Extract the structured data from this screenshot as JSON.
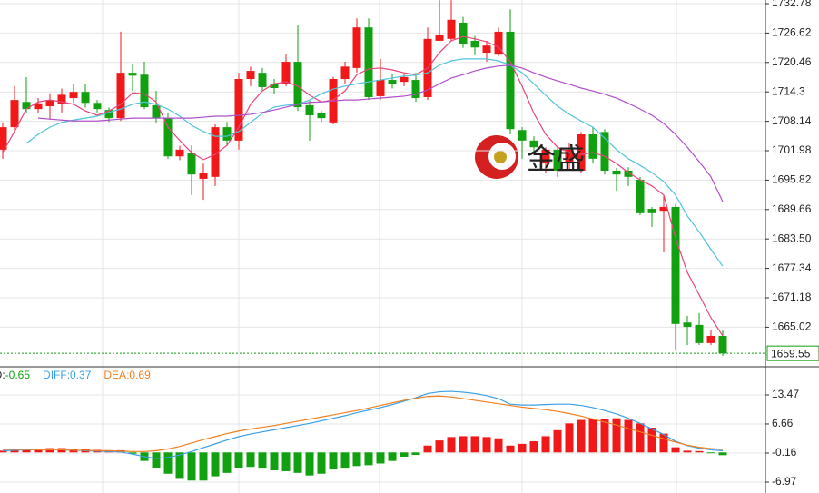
{
  "chart_data": [
    {
      "type": "candlestick",
      "open": [
        1702.2,
        1706.9,
        1712.2,
        1710.7,
        1711.3,
        1711.8,
        1713.0,
        1714.3,
        1712.0,
        1710.5,
        1708.8,
        1718.3,
        1717.9,
        1711.5,
        1708.8,
        1700.8,
        1701.6,
        1696.1,
        1696.5,
        1706.9,
        1704.1,
        1717.0,
        1718.3,
        1715.9,
        1716.0,
        1720.6,
        1711.5,
        1709.8,
        1707.9,
        1717.0,
        1719.3,
        1727.8,
        1713.4,
        1716.8,
        1716.4,
        1716.8,
        1713.2,
        1725.0,
        1725.4,
        1728.8,
        1725.0,
        1722.5,
        1722.1,
        1726.9,
        1706.3,
        1704.1,
        1699.3,
        1702.2,
        1699.3,
        1697.8,
        1705.4,
        1705.9,
        1697.8,
        1697.8,
        1695.9,
        1689.8,
        1689.4,
        1690.2,
        1666.0,
        1665.5,
        1661.7,
        1663.2
      ],
      "high": [
        1707.9,
        1715.5,
        1717.4,
        1713.0,
        1714.0,
        1715.0,
        1716.0,
        1716.0,
        1712.6,
        1711.0,
        1726.9,
        1720.2,
        1720.6,
        1714.5,
        1710.0,
        1703.0,
        1703.1,
        1699.3,
        1707.5,
        1708.0,
        1718.3,
        1719.6,
        1719.3,
        1717.0,
        1722.1,
        1728.2,
        1712.6,
        1710.3,
        1717.4,
        1720.6,
        1729.7,
        1729.7,
        1721.2,
        1718.0,
        1718.0,
        1718.3,
        1727.8,
        1733.5,
        1733.5,
        1730.0,
        1726.0,
        1725.0,
        1727.8,
        1731.6,
        1706.9,
        1705.0,
        1702.7,
        1703.0,
        1703.5,
        1705.9,
        1706.9,
        1706.5,
        1698.4,
        1698.5,
        1696.5,
        1690.2,
        1692.7,
        1690.8,
        1667.4,
        1668.0,
        1664.5,
        1664.5
      ],
      "low": [
        1700.3,
        1706.0,
        1709.8,
        1709.8,
        1708.5,
        1710.0,
        1712.0,
        1711.0,
        1710.0,
        1708.0,
        1708.2,
        1714.5,
        1710.7,
        1707.9,
        1700.3,
        1700.0,
        1692.7,
        1691.7,
        1694.6,
        1703.0,
        1702.2,
        1715.5,
        1714.5,
        1713.8,
        1715.5,
        1710.3,
        1704.1,
        1708.0,
        1707.5,
        1716.0,
        1718.3,
        1712.6,
        1712.6,
        1715.0,
        1715.5,
        1712.2,
        1712.6,
        1725.0,
        1725.0,
        1723.5,
        1722.0,
        1720.6,
        1721.8,
        1705.4,
        1700.3,
        1701.0,
        1697.4,
        1696.5,
        1697.8,
        1697.4,
        1699.3,
        1697.0,
        1693.6,
        1694.6,
        1688.5,
        1686.0,
        1680.7,
        1660.3,
        1661.3,
        1661.3,
        1661.3,
        1659.0
      ],
      "close": [
        1706.9,
        1712.6,
        1710.7,
        1711.9,
        1712.6,
        1713.7,
        1714.3,
        1712.0,
        1710.7,
        1708.8,
        1718.3,
        1717.7,
        1711.1,
        1708.8,
        1700.8,
        1702.2,
        1697.0,
        1697.4,
        1706.9,
        1704.1,
        1717.0,
        1718.7,
        1715.3,
        1715.1,
        1720.6,
        1711.1,
        1709.4,
        1708.8,
        1717.0,
        1719.6,
        1727.8,
        1713.2,
        1716.8,
        1716.0,
        1717.4,
        1713.0,
        1725.4,
        1726.3,
        1729.4,
        1724.4,
        1723.6,
        1724.0,
        1726.9,
        1706.5,
        1704.1,
        1702.7,
        1702.2,
        1697.8,
        1702.2,
        1705.4,
        1700.3,
        1697.8,
        1697.0,
        1696.5,
        1688.9,
        1688.9,
        1690.2,
        1665.7,
        1665.1,
        1661.7,
        1663.2,
        1659.55
      ],
      "up_color": "#f01818",
      "down_color": "#10a010",
      "lines": [
        {
          "color": "#e8457a",
          "values": [
            1701.6,
            1706.0,
            1710.7,
            1712.2,
            1712.6,
            1712.2,
            1711.7,
            1710.3,
            1709.4,
            1710.3,
            1711.7,
            1714.1,
            1713.9,
            1712.2,
            1706.9,
            1704.1,
            1701.6,
            1700.1,
            1701.2,
            1703.1,
            1706.9,
            1711.7,
            1714.5,
            1716.0,
            1716.4,
            1715.5,
            1713.6,
            1712.2,
            1712.6,
            1714.5,
            1717.9,
            1719.1,
            1719.3,
            1718.9,
            1718.3,
            1717.9,
            1719.3,
            1722.5,
            1725.0,
            1725.9,
            1725.4,
            1724.8,
            1723.7,
            1720.6,
            1715.5,
            1709.8,
            1705.4,
            1702.7,
            1701.6,
            1701.2,
            1701.6,
            1700.8,
            1699.3,
            1697.4,
            1695.9,
            1694.6,
            1692.7,
            1683.7,
            1676.5,
            1671.8,
            1667.0,
            1663.2
          ]
        },
        {
          "color": "#4fc3dc",
          "values": [
            null,
            null,
            1703.5,
            1705.4,
            1706.9,
            1707.9,
            1708.4,
            1708.8,
            1709.2,
            1710.0,
            1710.7,
            1711.7,
            1712.2,
            1711.7,
            1710.7,
            1709.2,
            1707.3,
            1706.0,
            1705.0,
            1705.0,
            1706.0,
            1707.9,
            1709.8,
            1711.1,
            1711.5,
            1711.7,
            1712.6,
            1713.9,
            1714.9,
            1715.5,
            1716.0,
            1716.4,
            1716.8,
            1717.2,
            1717.6,
            1717.8,
            1718.3,
            1719.9,
            1720.8,
            1721.2,
            1721.2,
            1721.2,
            1720.8,
            1719.9,
            1718.3,
            1716.0,
            1713.6,
            1711.3,
            1709.6,
            1708.2,
            1706.9,
            1704.6,
            1702.2,
            1700.3,
            1698.9,
            1697.4,
            1695.5,
            1692.7,
            1688.3,
            1685.0,
            1681.3,
            1677.8
          ]
        },
        {
          "color": "#b04fcc",
          "values": [
            null,
            null,
            null,
            1708.8,
            1708.6,
            1708.4,
            1708.2,
            1708.2,
            1708.2,
            1708.4,
            1708.6,
            1708.8,
            1708.8,
            1708.8,
            1708.8,
            1708.8,
            1708.8,
            1709.0,
            1709.2,
            1709.2,
            1709.4,
            1709.6,
            1710.0,
            1710.5,
            1711.1,
            1711.7,
            1712.1,
            1712.2,
            1712.4,
            1712.6,
            1712.6,
            1712.8,
            1713.0,
            1713.2,
            1713.4,
            1713.8,
            1714.7,
            1716.0,
            1717.2,
            1717.9,
            1718.7,
            1719.3,
            1719.7,
            1719.9,
            1719.3,
            1718.3,
            1717.4,
            1716.6,
            1715.9,
            1715.1,
            1714.5,
            1713.8,
            1713.0,
            1711.9,
            1710.7,
            1709.4,
            1707.7,
            1705.4,
            1702.7,
            1699.7,
            1696.5,
            1691.3
          ]
        }
      ],
      "ylim": [
        1656.92,
        1733.54
      ],
      "yticks": [
        1732.78,
        1726.62,
        1720.46,
        1714.3,
        1708.14,
        1701.98,
        1695.82,
        1689.66,
        {
          "value": 1683.5,
          "label": "1683.50"
        },
        1677.34,
        1671.18,
        1665.02
      ],
      "grid": true,
      "last_price": 1659.55,
      "watermark": "金盛"
    },
    {
      "type": "macd",
      "series": [
        {
          "name": "MACD:",
          "style": "bar",
          "up_color": "#f01818",
          "down_color": "#10a010",
          "values": [
            0.4,
            0.6,
            0.8,
            0.8,
            1.0,
            1.0,
            0.9,
            0.7,
            0.6,
            0.5,
            0.5,
            -0.3,
            -2.0,
            -3.6,
            -5.0,
            -6.2,
            -6.6,
            -6.6,
            -5.6,
            -4.8,
            -3.6,
            -3.4,
            -3.8,
            -4.2,
            -4.4,
            -4.8,
            -5.4,
            -5.0,
            -4.0,
            -3.8,
            -3.2,
            -3.0,
            -2.6,
            -2.0,
            -1.0,
            -0.6,
            1.6,
            2.8,
            3.6,
            3.8,
            3.8,
            3.6,
            3.3,
            1.6,
            2.0,
            2.6,
            3.8,
            5.2,
            6.8,
            7.6,
            7.8,
            7.8,
            8.0,
            7.6,
            6.8,
            5.8,
            4.4,
            1.2,
            0.4,
            0.3,
            -0.2,
            -0.65
          ]
        },
        {
          "name": "DIFF:",
          "style": "line",
          "color": "#3aa0e8",
          "values": [
            0.4,
            0.5,
            0.6,
            0.6,
            0.7,
            0.6,
            0.5,
            0.4,
            0.3,
            0.2,
            0.1,
            -0.4,
            -1.0,
            -1.4,
            -1.2,
            -0.6,
            0.2,
            1.1,
            2.0,
            2.9,
            3.7,
            4.3,
            4.8,
            5.3,
            5.8,
            6.3,
            6.8,
            7.4,
            8.0,
            8.6,
            9.3,
            9.9,
            10.5,
            11.2,
            12.0,
            12.8,
            13.8,
            14.2,
            14.3,
            14.1,
            13.8,
            13.3,
            12.6,
            11.3,
            11.1,
            11.1,
            11.2,
            11.3,
            11.3,
            11.0,
            10.5,
            9.8,
            9.0,
            8.0,
            6.8,
            5.5,
            4.2,
            2.6,
            1.6,
            1.0,
            0.6,
            0.37
          ]
        },
        {
          "name": "DEA:",
          "style": "line",
          "color": "#f08020",
          "values": [
            0.7,
            0.7,
            0.7,
            0.6,
            0.6,
            0.6,
            0.5,
            0.5,
            0.4,
            0.4,
            0.3,
            0.2,
            0.2,
            0.4,
            0.8,
            1.4,
            2.2,
            3.0,
            3.7,
            4.4,
            5.0,
            5.5,
            5.9,
            6.3,
            6.8,
            7.3,
            7.8,
            8.3,
            8.8,
            9.3,
            9.8,
            10.4,
            11.0,
            11.6,
            12.2,
            12.7,
            13.1,
            13.2,
            13.0,
            12.6,
            12.2,
            11.8,
            11.4,
            11.0,
            10.6,
            10.3,
            10.0,
            9.6,
            9.1,
            8.5,
            7.8,
            7.1,
            6.4,
            5.6,
            4.8,
            4.0,
            3.2,
            2.4,
            1.7,
            1.2,
            0.9,
            0.69
          ]
        }
      ],
      "ylim": [
        -9.52,
        19.85
      ],
      "yticks": [
        13.47,
        6.66,
        -0.16,
        -6.97
      ],
      "grid": true
    }
  ]
}
